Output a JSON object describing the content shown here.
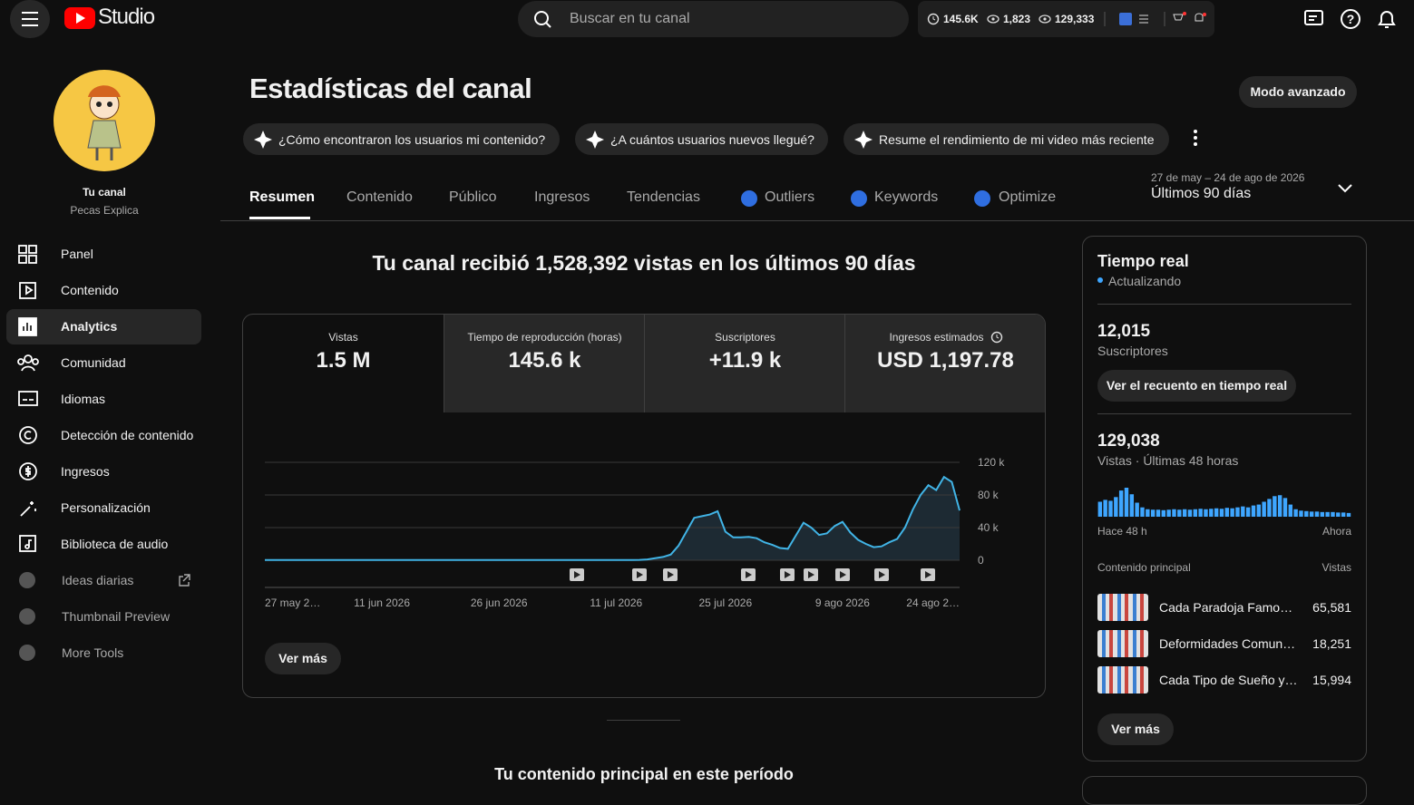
{
  "header": {
    "logo": "Studio",
    "search_placeholder": "Buscar en tu canal",
    "stats": [
      "145.6K",
      "1,823",
      "129,333"
    ]
  },
  "sidebar": {
    "channel_label": "Tu canal",
    "channel_name": "Pecas Explica",
    "items": [
      "Panel",
      "Contenido",
      "Analytics",
      "Comunidad",
      "Idiomas",
      "Detección de contenido",
      "Ingresos",
      "Personalización",
      "Biblioteca de audio"
    ],
    "extensions": [
      "Ideas diarias",
      "Thumbnail Preview",
      "More Tools"
    ]
  },
  "page": {
    "title": "Estadísticas del canal",
    "advanced_button": "Modo avanzado",
    "prompts": [
      "¿Cómo encontraron los usuarios mi contenido?",
      "¿A cuántos usuarios nuevos llegué?",
      "Resume el rendimiento de mi video más reciente"
    ],
    "tabs": [
      "Resumen",
      "Contenido",
      "Público",
      "Ingresos",
      "Tendencias",
      "Outliers",
      "Keywords",
      "Optimize"
    ],
    "date_range": "27 de may – 24 de ago de 2026",
    "period": "Últimos 90 días",
    "headline": "Tu canal recibió 1,528,392 vistas en los últimos 90 días",
    "metrics": [
      {
        "label": "Vistas",
        "value": "1.5 M"
      },
      {
        "label": "Tiempo de reproducción (horas)",
        "value": "145.6 k"
      },
      {
        "label": "Suscriptores",
        "value": "+11.9 k"
      },
      {
        "label": "Ingresos estimados",
        "value": "USD 1,197.78"
      }
    ],
    "see_more": "Ver más",
    "footer_heading": "Tu contenido principal en este período"
  },
  "chart_data": [
    {
      "type": "line",
      "color": "#41b4e6",
      "categories": [
        "27 may 2…",
        null,
        null,
        null,
        null,
        null,
        null,
        null,
        null,
        null,
        null,
        null,
        null,
        null,
        null,
        "11 jun 2026",
        null,
        null,
        null,
        null,
        null,
        null,
        null,
        null,
        null,
        null,
        null,
        null,
        null,
        null,
        "26 jun 2026",
        null,
        null,
        null,
        null,
        null,
        null,
        null,
        null,
        null,
        null,
        null,
        null,
        null,
        null,
        "11 jul 2026",
        null,
        null,
        null,
        null,
        null,
        null,
        null,
        null,
        null,
        null,
        null,
        null,
        null,
        "25 jul 2026",
        null,
        null,
        null,
        null,
        null,
        null,
        null,
        null,
        null,
        null,
        null,
        null,
        null,
        null,
        "9 ago 2026",
        null,
        null,
        null,
        null,
        null,
        null,
        null,
        null,
        null,
        null,
        null,
        null,
        null,
        null,
        "24 ago 2…"
      ],
      "values": [
        300,
        300,
        300,
        300,
        300,
        300,
        300,
        300,
        300,
        300,
        300,
        300,
        300,
        300,
        300,
        300,
        300,
        300,
        300,
        300,
        300,
        300,
        300,
        300,
        300,
        300,
        300,
        300,
        300,
        300,
        300,
        300,
        300,
        300,
        300,
        300,
        300,
        300,
        300,
        300,
        300,
        300,
        300,
        300,
        300,
        300,
        300,
        300,
        500,
        1000,
        2500,
        4000,
        7000,
        18000,
        35000,
        52000,
        54000,
        56000,
        60000,
        35000,
        28000,
        28000,
        28500,
        27000,
        22000,
        19000,
        15000,
        14000,
        30000,
        46000,
        40000,
        31000,
        33000,
        42000,
        47000,
        34000,
        25000,
        20000,
        16000,
        17000,
        22000,
        26000,
        40000,
        62000,
        80000,
        92000,
        86000,
        102000,
        96000,
        61000
      ],
      "ylim": [
        0,
        120000
      ],
      "yticks": [
        0,
        {
          "value": 40000,
          "label": "40 k"
        },
        {
          "value": 80000,
          "label": "80 k"
        },
        {
          "value": 120000,
          "label": "120 k"
        }
      ],
      "grid": true
    },
    {
      "type": "bar",
      "color": "#3ea6ff",
      "categories": [
        "Hace 48 h",
        null,
        null,
        null,
        null,
        null,
        null,
        null,
        null,
        null,
        null,
        null,
        null,
        null,
        null,
        null,
        null,
        null,
        null,
        null,
        null,
        null,
        null,
        null,
        null,
        null,
        null,
        null,
        null,
        null,
        null,
        null,
        null,
        null,
        null,
        null,
        null,
        null,
        null,
        null,
        null,
        null,
        null,
        null,
        null,
        null,
        null,
        "Ahora"
      ],
      "values": [
        3200,
        3600,
        3400,
        4200,
        5600,
        6200,
        4800,
        3000,
        2000,
        1600,
        1500,
        1500,
        1400,
        1500,
        1600,
        1500,
        1600,
        1500,
        1600,
        1700,
        1600,
        1700,
        1800,
        1700,
        1900,
        1800,
        2000,
        2200,
        2000,
        2400,
        2600,
        3200,
        3800,
        4400,
        4600,
        4000,
        2600,
        1600,
        1300,
        1200,
        1100,
        1100,
        1000,
        1000,
        1000,
        900,
        900,
        800
      ]
    }
  ],
  "realtime": {
    "title": "Tiempo real",
    "status": "Actualizando",
    "subscribers": "12,015",
    "subscribers_label": "Suscriptores",
    "count_button": "Ver el recuento en tiempo real",
    "views": "129,038",
    "views_label": "Vistas · Últimas 48 horas",
    "top_label": "Contenido principal",
    "views_col": "Vistas",
    "top": [
      {
        "title": "Cada Paradoja Famo…",
        "views": "65,581"
      },
      {
        "title": "Deformidades Comun…",
        "views": "18,251"
      },
      {
        "title": "Cada Tipo de Sueño y…",
        "views": "15,994"
      }
    ],
    "see_more": "Ver más"
  }
}
